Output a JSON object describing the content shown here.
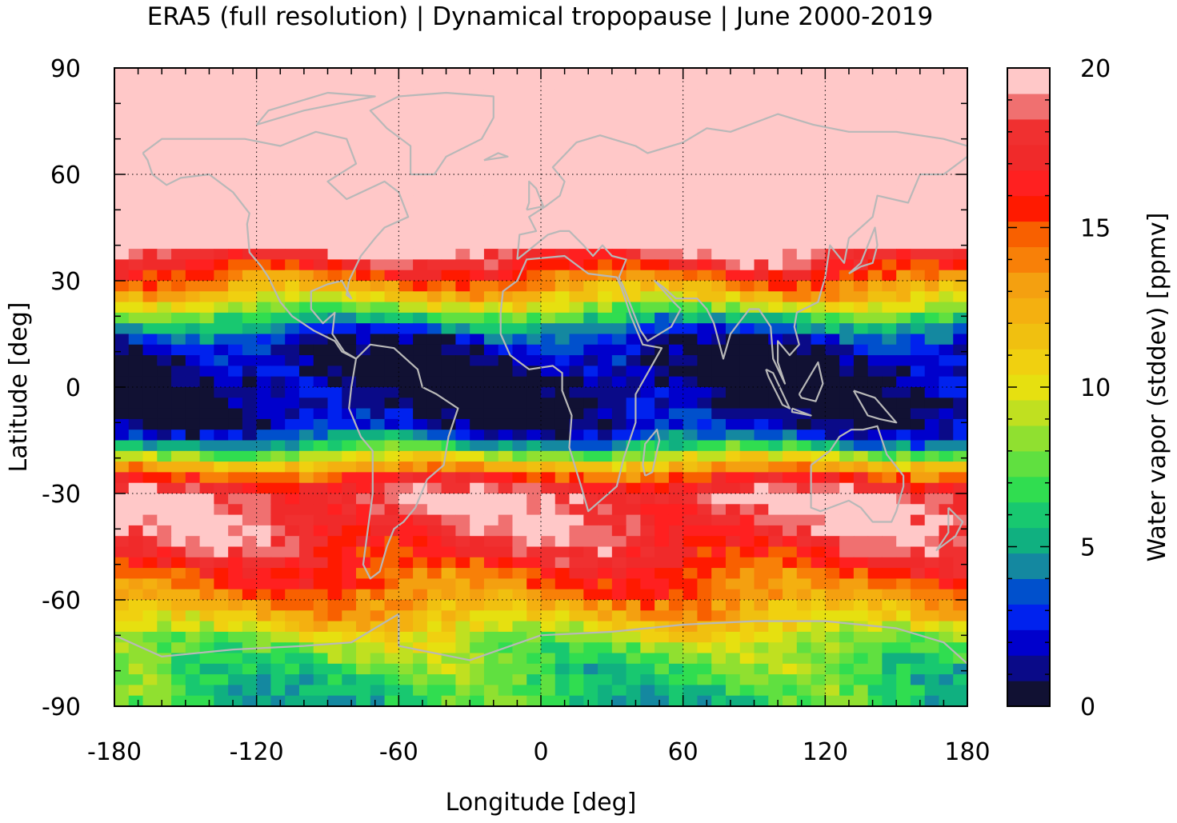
{
  "chart_data": {
    "type": "heatmap",
    "title": "ERA5 (full resolution) | Dynamical tropopause | June 2000-2019",
    "xlabel": "Longitude [deg]",
    "ylabel": "Latitude [deg]",
    "xlim": [
      -180,
      180
    ],
    "ylim": [
      -90,
      90
    ],
    "x_ticks": [
      "-180",
      "-120",
      "-60",
      "0",
      "60",
      "120",
      "180"
    ],
    "y_ticks": [
      "90",
      "60",
      "30",
      "0",
      "-30",
      "-60",
      "-90"
    ],
    "grid": true,
    "colorbar": {
      "label": "Water vapor (stddev) [ppmv]",
      "range": [
        0,
        20
      ],
      "ticks": [
        "20",
        "15",
        "10",
        "5",
        "0"
      ],
      "colors": [
        "#111133",
        "#0a0a88",
        "#0000cc",
        "#0022ee",
        "#0050cc",
        "#1488a0",
        "#10b080",
        "#18c870",
        "#30dd50",
        "#60e040",
        "#90e030",
        "#c0e020",
        "#e6e010",
        "#f0d010",
        "#f0c010",
        "#f4b010",
        "#f4a010",
        "#f88008",
        "#f86000",
        "#ff1a00",
        "#ff2020",
        "#f02a2a",
        "#f03030",
        "#f07070",
        "#ffc8c8"
      ]
    },
    "latitude_profile": [
      {
        "lat": 90,
        "value": 20
      },
      {
        "lat": 60,
        "value": 20
      },
      {
        "lat": 40,
        "value": 20
      },
      {
        "lat": 33,
        "value": 16
      },
      {
        "lat": 25,
        "value": 11
      },
      {
        "lat": 18,
        "value": 5
      },
      {
        "lat": 12,
        "value": 1.5
      },
      {
        "lat": 5,
        "value": 0.5
      },
      {
        "lat": -5,
        "value": 0.5
      },
      {
        "lat": -12,
        "value": 2
      },
      {
        "lat": -17,
        "value": 6
      },
      {
        "lat": -22,
        "value": 12
      },
      {
        "lat": -27,
        "value": 17
      },
      {
        "lat": -32,
        "value": 19
      },
      {
        "lat": -42,
        "value": 18
      },
      {
        "lat": -50,
        "value": 16
      },
      {
        "lat": -58,
        "value": 14
      },
      {
        "lat": -66,
        "value": 11.5
      },
      {
        "lat": -72,
        "value": 8.5
      },
      {
        "lat": -80,
        "value": 7
      },
      {
        "lat": -90,
        "value": 6
      }
    ]
  }
}
